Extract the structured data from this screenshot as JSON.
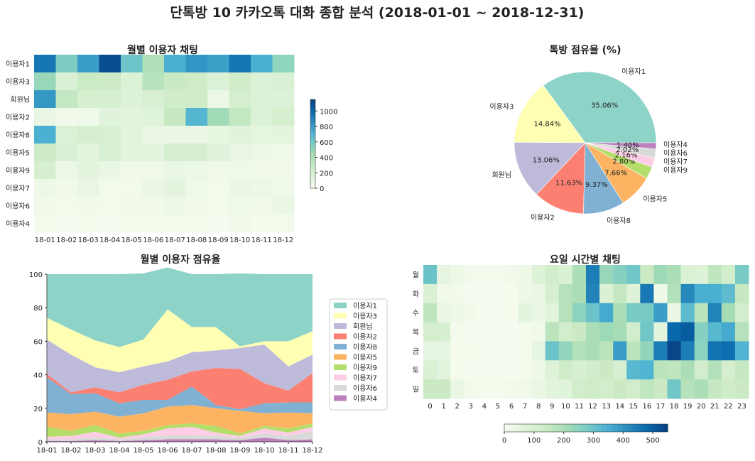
{
  "main_title": "단톡방 10 카카오톡 대화 종합 분석 (2018-01-01  ~ 2018-12-31)",
  "colors": {
    "users": [
      "#8dd3c7",
      "#ffffb3",
      "#bebada",
      "#fb8072",
      "#80b1d3",
      "#fdb462",
      "#b3de69",
      "#fccde5",
      "#d9d9d9",
      "#bc80bd"
    ],
    "gnbu": [
      "#f7fcf0",
      "#e0f3db",
      "#ccebc5",
      "#a8ddb5",
      "#7bccc4",
      "#4eb3d3",
      "#2b8cbe",
      "#0868ac",
      "#084081"
    ]
  },
  "chart_data": [
    {
      "type": "heatmap",
      "title": "월별 이용자 채팅",
      "x": [
        "18-01",
        "18-02",
        "18-03",
        "18-04",
        "18-05",
        "18-06",
        "18-07",
        "18-08",
        "18-09",
        "18-10",
        "18-11",
        "18-12"
      ],
      "y": [
        "이용자1",
        "이용자3",
        "회원님",
        "이용자2",
        "이용자8",
        "이용자5",
        "이용자9",
        "이용자7",
        "이용자6",
        "이용자4"
      ],
      "values": [
        [
          950,
          570,
          800,
          1100,
          620,
          400,
          730,
          830,
          790,
          950,
          730,
          510
        ],
        [
          480,
          190,
          290,
          280,
          170,
          370,
          300,
          270,
          170,
          260,
          170,
          190
        ],
        [
          820,
          320,
          220,
          220,
          160,
          200,
          260,
          270,
          70,
          230,
          170,
          160
        ],
        [
          90,
          40,
          50,
          140,
          120,
          150,
          310,
          700,
          450,
          320,
          170,
          220
        ],
        [
          730,
          170,
          220,
          200,
          130,
          90,
          80,
          80,
          100,
          140,
          110,
          120
        ],
        [
          280,
          190,
          120,
          200,
          130,
          120,
          220,
          220,
          140,
          90,
          70,
          50
        ],
        [
          210,
          70,
          120,
          80,
          40,
          40,
          80,
          70,
          40,
          50,
          40,
          40
        ],
        [
          60,
          40,
          90,
          30,
          30,
          80,
          120,
          50,
          30,
          80,
          60,
          50
        ],
        [
          40,
          30,
          40,
          30,
          40,
          40,
          60,
          40,
          30,
          50,
          40,
          80
        ],
        [
          20,
          10,
          20,
          10,
          20,
          20,
          30,
          30,
          10,
          40,
          20,
          30
        ]
      ],
      "colorbar": {
        "min": 0,
        "max": 1150,
        "ticks": [
          0,
          200,
          400,
          600,
          800,
          1000
        ]
      }
    },
    {
      "type": "pie",
      "title": "톡방 점유율 (%)",
      "labels": [
        "이용자1",
        "이용자3",
        "회원님",
        "이용자2",
        "이용자8",
        "이용자5",
        "이용자9",
        "이용자7",
        "이용자6",
        "이용자4"
      ],
      "values": [
        35.06,
        14.84,
        13.06,
        11.63,
        9.37,
        7.66,
        2.8,
        2.16,
        2.02,
        1.4
      ],
      "value_labels": [
        "35.06%",
        "14.84%",
        "13.06%",
        "11.63%",
        "9.37%",
        "7.66%",
        "2.80%",
        "2.16%",
        "2.02%",
        "1.40%"
      ]
    },
    {
      "type": "area",
      "title": "월별 이용자 점유율",
      "x": [
        "18-01",
        "18-02",
        "18-03",
        "18-04",
        "18-05",
        "18-06",
        "18-07",
        "18-08",
        "18-09",
        "18-10",
        "18-11",
        "18-12"
      ],
      "ylim": [
        0,
        100
      ],
      "yticks": [
        0,
        20,
        40,
        60,
        80,
        100
      ],
      "series": [
        {
          "name": "이용자4",
          "values": [
            0.5,
            0.5,
            1,
            0.5,
            1,
            1.5,
            1.5,
            1.5,
            1,
            2.5,
            1,
            1.5
          ]
        },
        {
          "name": "이용자6",
          "values": [
            1,
            1,
            1.5,
            1,
            1.5,
            2.5,
            2.5,
            2,
            1.5,
            2.5,
            2.5,
            5
          ]
        },
        {
          "name": "이용자7",
          "values": [
            1.5,
            2,
            3.5,
            1,
            2,
            4,
            5,
            2,
            1,
            3,
            2,
            2.5
          ]
        },
        {
          "name": "이용자9",
          "values": [
            6,
            3,
            4,
            2.5,
            2,
            2,
            2,
            4,
            1.5,
            1.5,
            2.5,
            2
          ]
        },
        {
          "name": "이용자5",
          "values": [
            8.5,
            10,
            8,
            10,
            10.5,
            11,
            11,
            10.5,
            13.5,
            7.5,
            9.5,
            6
          ]
        },
        {
          "name": "이용자8",
          "values": [
            21,
            12,
            11,
            8,
            8,
            4,
            11,
            2,
            1,
            6,
            6,
            6.5
          ]
        },
        {
          "name": "이용자2",
          "values": [
            2,
            1,
            3.5,
            6.5,
            9,
            12,
            9,
            22,
            24,
            12,
            7,
            17.5
          ]
        },
        {
          "name": "회원님",
          "values": [
            20.5,
            22.5,
            12,
            12,
            11,
            11,
            11.5,
            10.5,
            12.5,
            23,
            14.5,
            11
          ]
        },
        {
          "name": "이용자3",
          "values": [
            13,
            15,
            16,
            15,
            16,
            31,
            15,
            14,
            1,
            2,
            15,
            14
          ]
        },
        {
          "name": "이용자1",
          "values": [
            26,
            33,
            39.5,
            43.5,
            39.5,
            25,
            31.5,
            31.5,
            43.5,
            40,
            40,
            34
          ]
        }
      ],
      "legend": [
        "이용자1",
        "이용자3",
        "회원님",
        "이용자2",
        "이용자8",
        "이용자5",
        "이용자9",
        "이용자7",
        "이용자6",
        "이용자4"
      ],
      "legend_placement": "right"
    },
    {
      "type": "heatmap",
      "title": "요일 시간별 채팅",
      "x": [
        "0",
        "1",
        "2",
        "3",
        "4",
        "5",
        "6",
        "7",
        "8",
        "9",
        "10",
        "11",
        "12",
        "13",
        "14",
        "15",
        "16",
        "17",
        "18",
        "19",
        "20",
        "21",
        "22",
        "23"
      ],
      "y": [
        "월",
        "화",
        "수",
        "목",
        "금",
        "토",
        "일"
      ],
      "values": [
        [
          300,
          50,
          30,
          15,
          10,
          10,
          20,
          30,
          80,
          120,
          90,
          200,
          440,
          230,
          260,
          290,
          140,
          220,
          200,
          90,
          80,
          160,
          120,
          280
        ],
        [
          90,
          20,
          15,
          5,
          5,
          5,
          10,
          30,
          40,
          100,
          180,
          200,
          430,
          90,
          150,
          80,
          450,
          30,
          190,
          420,
          350,
          350,
          320,
          150
        ],
        [
          160,
          40,
          30,
          15,
          5,
          5,
          10,
          60,
          40,
          70,
          180,
          250,
          300,
          360,
          200,
          280,
          280,
          380,
          40,
          320,
          170,
          430,
          210,
          120
        ],
        [
          110,
          100,
          10,
          5,
          5,
          5,
          5,
          10,
          20,
          170,
          120,
          140,
          200,
          220,
          210,
          120,
          290,
          60,
          480,
          500,
          260,
          330,
          360,
          180
        ],
        [
          50,
          50,
          10,
          10,
          5,
          5,
          5,
          15,
          50,
          300,
          240,
          190,
          200,
          170,
          380,
          170,
          240,
          440,
          540,
          440,
          250,
          460,
          470,
          340
        ],
        [
          90,
          60,
          10,
          5,
          5,
          5,
          5,
          10,
          30,
          80,
          130,
          100,
          120,
          140,
          100,
          330,
          340,
          170,
          160,
          200,
          120,
          190,
          110,
          150
        ],
        [
          140,
          140,
          40,
          15,
          10,
          10,
          15,
          20,
          40,
          60,
          70,
          120,
          130,
          120,
          140,
          120,
          160,
          140,
          290,
          180,
          200,
          150,
          130,
          140
        ]
      ],
      "colorbar": {
        "min": 0,
        "max": 550,
        "ticks": [
          0,
          100,
          200,
          300,
          400,
          500
        ]
      }
    }
  ]
}
